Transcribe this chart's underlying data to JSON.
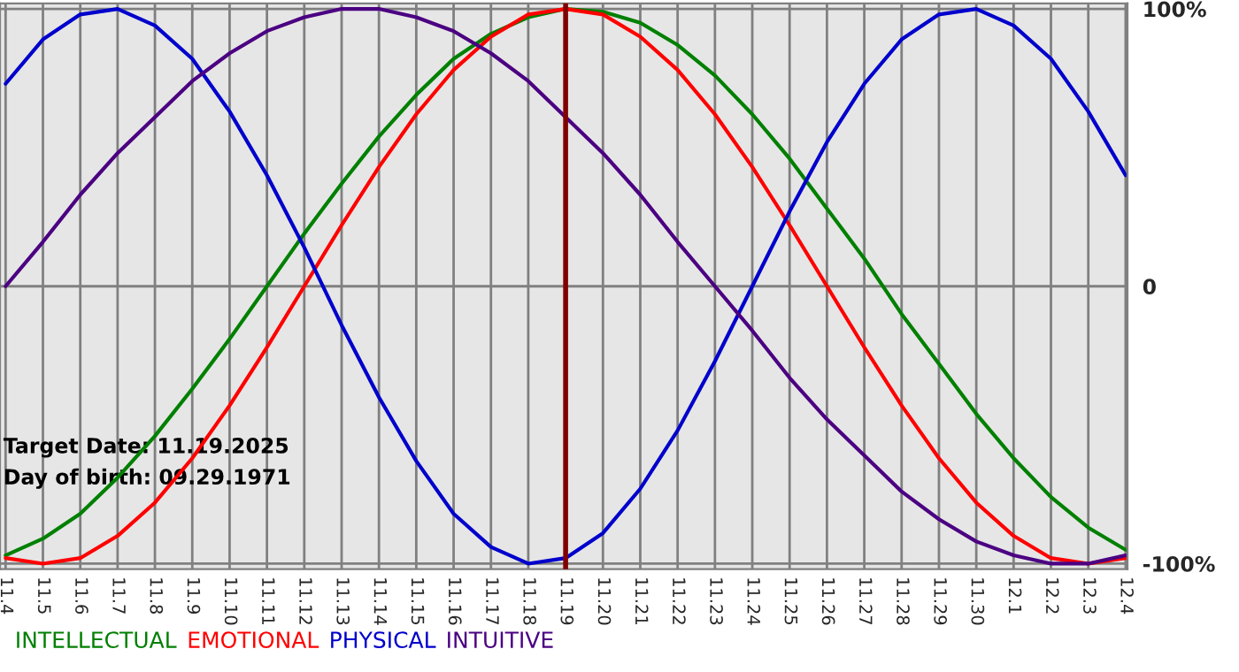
{
  "chart_data": {
    "type": "line",
    "categories": [
      "11.4",
      "11.5",
      "11.6",
      "11.7",
      "11.8",
      "11.9",
      "11.10",
      "11.11",
      "11.12",
      "11.13",
      "11.14",
      "11.15",
      "11.16",
      "11.17",
      "11.18",
      "11.19",
      "11.20",
      "11.21",
      "11.22",
      "11.23",
      "11.24",
      "11.25",
      "11.26",
      "11.27",
      "11.28",
      "11.29",
      "11.30",
      "12.1",
      "12.2",
      "12.3",
      "12.4"
    ],
    "series": [
      {
        "name": "INTELLECTUAL",
        "color": "#008000",
        "values": [
          -97,
          -91,
          -82,
          -69,
          -54,
          -37,
          -19,
          0,
          19,
          37,
          54,
          69,
          82,
          91,
          97,
          100,
          99,
          95,
          87,
          76,
          62,
          46,
          28,
          10,
          -10,
          -28,
          -46,
          -62,
          -76,
          -87,
          -95
        ]
      },
      {
        "name": "EMOTIONAL",
        "color": "#ff0000",
        "values": [
          -98,
          -100,
          -98,
          -90,
          -78,
          -62,
          -43,
          -22,
          0,
          22,
          43,
          62,
          78,
          90,
          98,
          100,
          98,
          90,
          78,
          62,
          43,
          22,
          0,
          -22,
          -43,
          -62,
          -78,
          -90,
          -98,
          -100,
          -98
        ]
      },
      {
        "name": "PHYSICAL",
        "color": "#0000cc",
        "values": [
          73,
          89,
          98,
          100,
          94,
          82,
          63,
          40,
          14,
          -14,
          -40,
          -63,
          -82,
          -94,
          -100,
          -98,
          -89,
          -73,
          -52,
          -27,
          0,
          27,
          52,
          73,
          89,
          98,
          100,
          94,
          82,
          63,
          40
        ]
      },
      {
        "name": "INTUITIVE",
        "color": "#4b0082",
        "values": [
          0,
          16,
          33,
          48,
          61,
          74,
          84,
          92,
          97,
          100,
          100,
          97,
          92,
          84,
          74,
          61,
          48,
          33,
          16,
          0,
          -16,
          -33,
          -48,
          -61,
          -74,
          -84,
          -92,
          -97,
          -100,
          -100,
          -97
        ]
      }
    ],
    "ylim": [
      -102,
      102
    ],
    "yticks": [
      {
        "value": 100,
        "label": "100%"
      },
      0,
      {
        "value": -100,
        "label": "-100%"
      }
    ],
    "ref_lines": [
      {
        "axis": "x",
        "value": "11.19",
        "color": "#800000"
      }
    ],
    "annotations": [
      "Target Date: 11.19.2025",
      "Day of birth: 09.29.1971"
    ],
    "grid": true,
    "legend": "bottom",
    "line_style": "solid",
    "marker": "none"
  }
}
